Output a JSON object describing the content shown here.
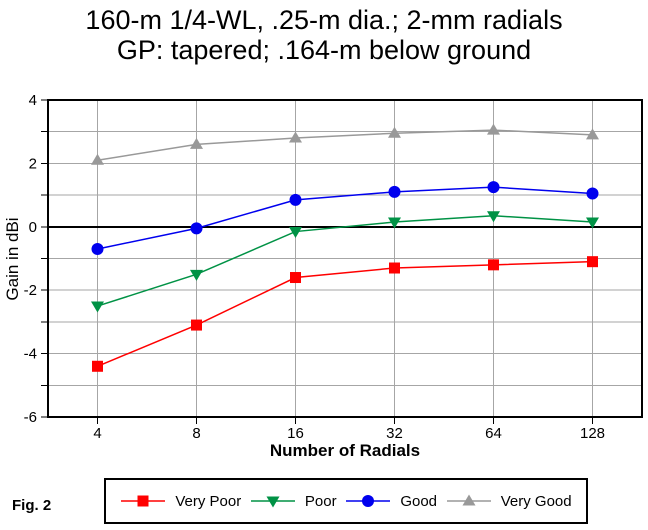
{
  "title": {
    "line1": "160-m 1/4-WL, .25-m dia.; 2-mm radials",
    "line2": "GP: tapered; .164-m below ground"
  },
  "fig_label": "Fig. 2",
  "chart_data": {
    "type": "line",
    "title": "160-m 1/4-WL, .25-m dia.; 2-mm radials GP: tapered; .164-m below ground",
    "xlabel": "Number of Radials",
    "ylabel": "Gain in dBi",
    "categories": [
      "4",
      "8",
      "16",
      "32",
      "64",
      "128"
    ],
    "ylim": [
      -6,
      4
    ],
    "ytick_step": 2,
    "grid": true,
    "legend_position": "bottom",
    "series": [
      {
        "name": "Very Poor",
        "marker": "square",
        "color": "#FF0000",
        "values": [
          -4.4,
          -3.1,
          -1.6,
          -1.3,
          -1.2,
          -1.1
        ]
      },
      {
        "name": "Poor",
        "marker": "triangle-down",
        "color": "#009245",
        "values": [
          -2.5,
          -1.5,
          -0.15,
          0.15,
          0.35,
          0.15
        ]
      },
      {
        "name": "Good",
        "marker": "circle",
        "color": "#0000EE",
        "values": [
          -0.7,
          -0.05,
          0.85,
          1.1,
          1.25,
          1.05
        ]
      },
      {
        "name": "Very Good",
        "marker": "triangle-up",
        "color": "#999999",
        "values": [
          2.1,
          2.6,
          2.8,
          2.95,
          3.05,
          2.9
        ]
      }
    ],
    "colors": {
      "gridline": "#A6A6A6",
      "axis": "#000000",
      "zero_line": "#000000"
    }
  }
}
